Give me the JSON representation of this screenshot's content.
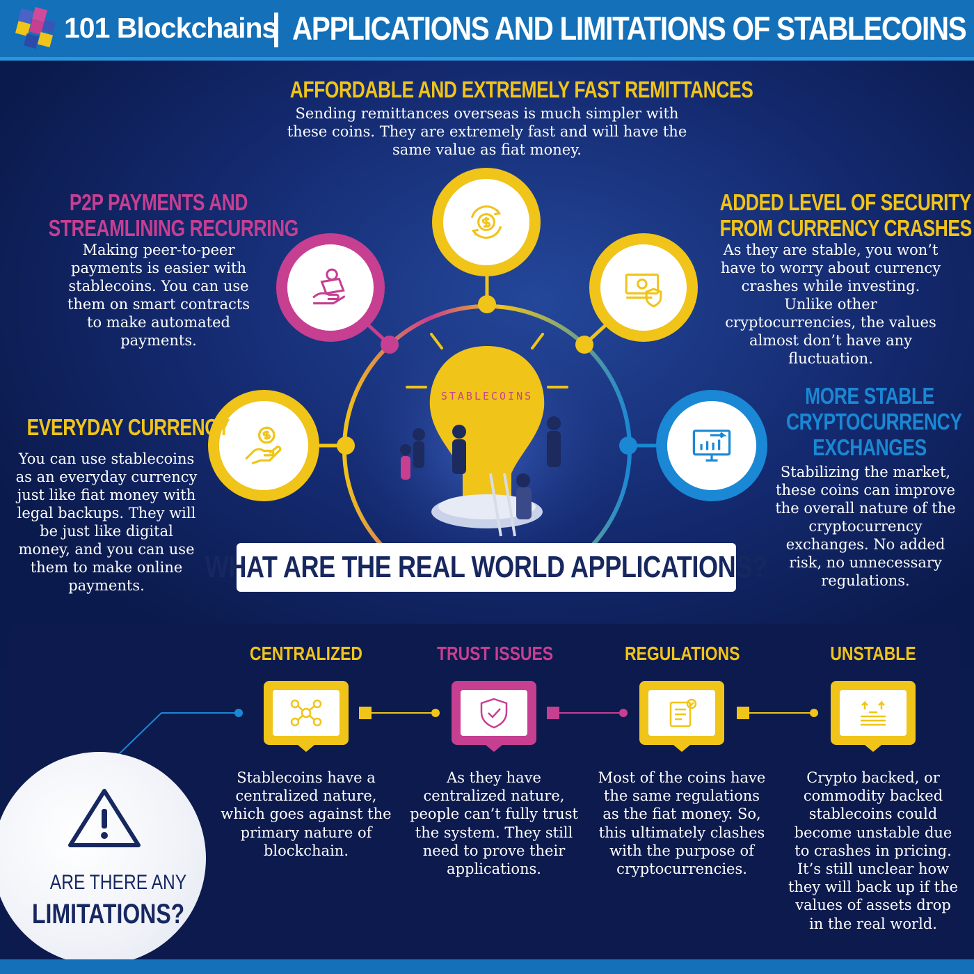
{
  "header": {
    "brand": "101 Blockchains",
    "title": "APPLICATIONS AND LIMITATIONS OF STABLECOINS"
  },
  "applications": {
    "remittances": {
      "title": "AFFORDABLE AND EXTREMELY FAST REMITTANCES",
      "text": "Sending remittances overseas is much simpler with these coins. They are extremely fast and will have the same value as fiat money."
    },
    "p2p": {
      "title_line1": "P2P PAYMENTS AND",
      "title_line2": "STREAMLINING RECURRING",
      "text": "Making peer-to-peer payments is easier with stablecoins. You can use them on smart contracts to make automated payments."
    },
    "security": {
      "title_line1": "ADDED LEVEL OF SECURITY",
      "title_line2": "FROM CURRENCY CRASHES",
      "text": "As they are stable, you won’t have to worry about currency crashes while investing. Unlike other cryptocurrencies, the values almost don’t have any fluctuation."
    },
    "everyday": {
      "title": "EVERYDAY CURRENCY",
      "text": "You can use stablecoins as an everyday currency just like fiat money with legal backups. They will be just like digital money, and you can use them to make online payments."
    },
    "exchanges": {
      "title_line1": "MORE STABLE",
      "title_line2": "CRYPTOCURRENCY",
      "title_line3": "EXCHANGES",
      "text": "Stabilizing the market, these coins can improve the overall nature of the cryptocurrency exchanges. No added risk, no unnecessary regulations."
    },
    "bulb_label": "STABLECOINS",
    "question": "WHAT ARE THE REAL WORLD APPLICATIONS?"
  },
  "limitations": {
    "question_line1": "ARE  THERE ANY",
    "question_line2": "LIMITATIONS?",
    "items": [
      {
        "title": "CENTRALIZED",
        "text": "Stablecoins have a centralized nature, which goes against the primary nature of blockchain."
      },
      {
        "title": "TRUST ISSUES",
        "text": "As they have centralized nature, people can’t fully trust the system. They still need to prove their applications."
      },
      {
        "title": "REGULATIONS",
        "text": "Most of the coins have the same regulations as the fiat money. So, this ultimately clashes with the purpose of cryptocurrencies."
      },
      {
        "title": "UNSTABLE",
        "text": "Crypto backed, or commodity backed stablecoins could become unstable due to crashes in pricing. It’s still unclear how they will back up if the values of assets drop in the real world."
      }
    ]
  },
  "colors": {
    "yellow": "#f0c419",
    "magenta": "#c63f91",
    "blue": "#1a88d4",
    "navy": "#0c1b4e"
  },
  "icons": [
    "dollar-cycle-icon",
    "hand-money-icon",
    "banknote-shield-icon",
    "hand-coin-icon",
    "monitor-chart-icon",
    "network-icon",
    "shield-check-icon",
    "document-gear-icon",
    "coin-stack-icon",
    "warning-icon"
  ]
}
